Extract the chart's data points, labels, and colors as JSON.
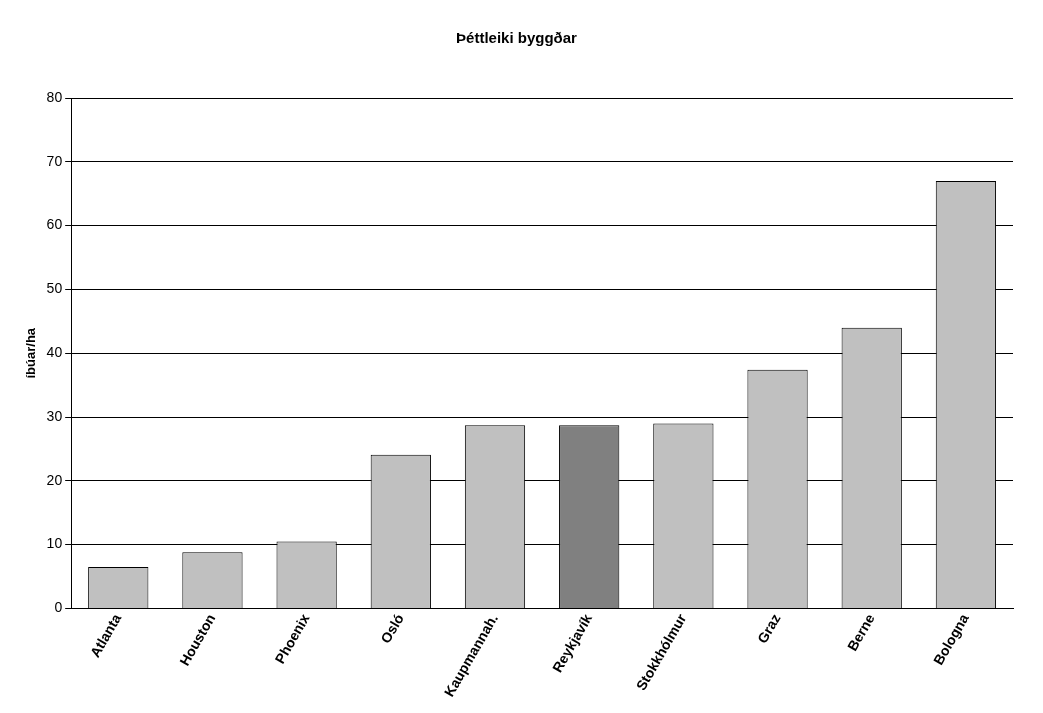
{
  "chart_data": {
    "type": "bar",
    "title": "Þéttleiki byggðar",
    "ylabel": "íbúar/ha",
    "categories": [
      "Atlanta",
      "Houston",
      "Phoenix",
      "Osló",
      "Kaupmannah.",
      "Reykjavík",
      "Stokkhólmur",
      "Graz",
      "Berne",
      "Bologna"
    ],
    "values": [
      6.5,
      8.8,
      10.5,
      24.1,
      28.7,
      28.7,
      29,
      37.4,
      44,
      67
    ],
    "colors": [
      "#c0c0c0",
      "#c0c0c0",
      "#c0c0c0",
      "#c0c0c0",
      "#c0c0c0",
      "#808080",
      "#c0c0c0",
      "#c0c0c0",
      "#c0c0c0",
      "#c0c0c0"
    ],
    "ylim": [
      0,
      80
    ],
    "yticks": [
      0,
      10,
      20,
      30,
      40,
      50,
      60,
      70,
      80
    ],
    "grid": "y",
    "legend": false
  }
}
